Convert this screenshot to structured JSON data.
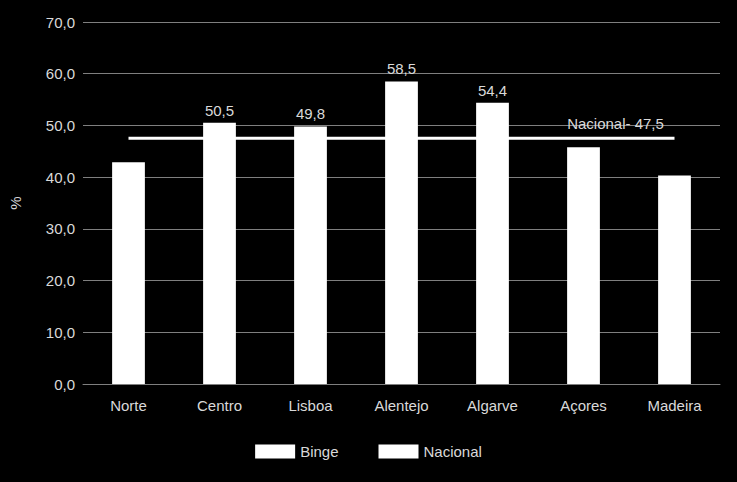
{
  "chart_data": {
    "type": "bar",
    "categories": [
      "Norte",
      "Centro",
      "Lisboa",
      "Alentejo",
      "Algarve",
      "Açores",
      "Madeira"
    ],
    "series": [
      {
        "name": "Binge",
        "type": "bar",
        "color": "#ffffff",
        "values": [
          42.9,
          50.5,
          49.8,
          58.5,
          54.4,
          45.8,
          40.3
        ],
        "value_labels": [
          null,
          "50,5",
          "49,8",
          "58,5",
          "54,4",
          null,
          null
        ],
        "data_labels": true
      },
      {
        "name": "Nacional",
        "type": "line",
        "color": "#ffffff",
        "values": [
          47.5,
          47.5,
          47.5,
          47.5,
          47.5,
          47.5,
          47.5
        ]
      }
    ],
    "annotation": {
      "text": "Nacional- 47,5",
      "at": "Açores"
    },
    "y_label": "%",
    "ylim": [
      0,
      70
    ],
    "yticks": [
      {
        "value": 0,
        "label": "0,0"
      },
      {
        "value": 10,
        "label": "10,0"
      },
      {
        "value": 20,
        "label": "20,0"
      },
      {
        "value": 30,
        "label": "30,0"
      },
      {
        "value": 40,
        "label": "40,0"
      },
      {
        "value": 50,
        "label": "50,0"
      },
      {
        "value": 60,
        "label": "60,0"
      },
      {
        "value": 70,
        "label": "70,0"
      }
    ],
    "grid": true,
    "legend": "bottom"
  }
}
